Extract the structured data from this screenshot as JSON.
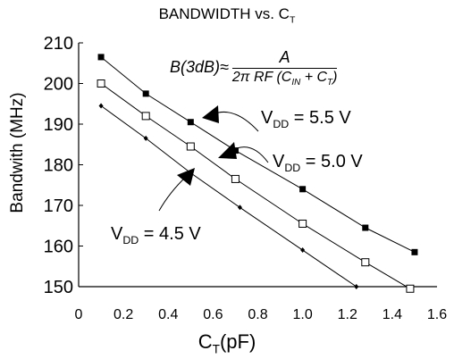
{
  "chart_data": {
    "type": "line",
    "title": "BANDWIDTH vs. C",
    "title_sub": "T",
    "xlabel": "C",
    "xlabel_sub": "T",
    "xlabel_unit": "(pF)",
    "ylabel": "Bandwith (MHz)",
    "xlim": [
      0,
      1.6
    ],
    "ylim": [
      150,
      210
    ],
    "x_ticks": [
      "0",
      "0.2",
      "0.4",
      "0.6",
      "0.8",
      "1.0",
      "1.2",
      "1.4",
      "1.6"
    ],
    "y_ticks": [
      "150",
      "160",
      "170",
      "180",
      "190",
      "200",
      "210"
    ],
    "formula": {
      "lhs": "B(3dB)≈",
      "numerator": "A",
      "denominator": "2π RF (C",
      "denominator_sub1": "IN",
      "denominator_mid": " + C",
      "denominator_sub2": "T",
      "denominator_end": ")"
    },
    "series": [
      {
        "name": "V",
        "name_sub": "DD",
        "name_value": " = 5.5 V",
        "marker": "filled-square",
        "x": [
          0.1,
          0.3,
          0.5,
          0.7,
          1.0,
          1.28,
          1.5
        ],
        "y": [
          206.5,
          197.5,
          190.5,
          183.5,
          174,
          164.5,
          158.5
        ]
      },
      {
        "name": "V",
        "name_sub": "DD",
        "name_value": " = 5.0 V",
        "marker": "open-square",
        "x": [
          0.1,
          0.3,
          0.5,
          0.7,
          1.0,
          1.28,
          1.48
        ],
        "y": [
          200,
          192,
          184.5,
          176.5,
          165.5,
          156,
          149.5
        ]
      },
      {
        "name": "V",
        "name_sub": "DD",
        "name_value": " = 4.5 V",
        "marker": "small-diamond",
        "x": [
          0.1,
          0.3,
          0.5,
          0.72,
          1.0,
          1.24
        ],
        "y": [
          194.5,
          186.5,
          178,
          169.5,
          159,
          150
        ]
      }
    ]
  }
}
